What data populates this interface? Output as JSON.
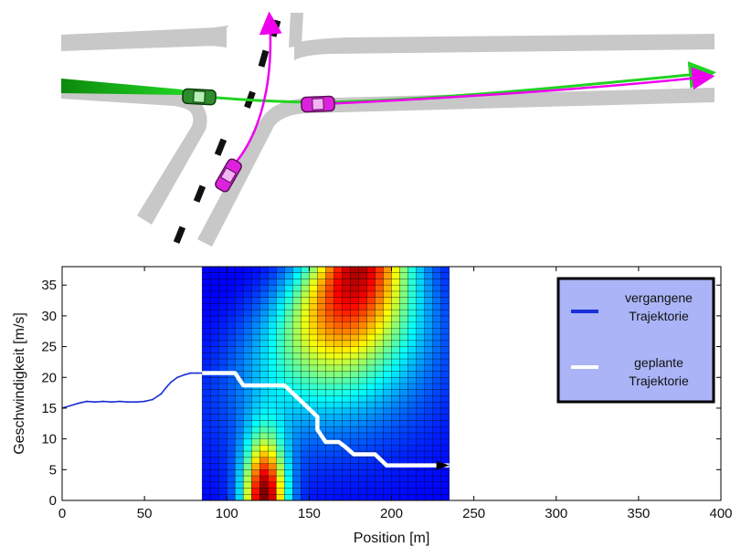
{
  "chart_data": {
    "type": "heatmap",
    "xlabel": "Position [m]",
    "ylabel": "Geschwindigkeit [m/s]",
    "xlim": [
      0,
      400
    ],
    "ylim": [
      0,
      38
    ],
    "xticks": [
      "0",
      "50",
      "100",
      "150",
      "200",
      "250",
      "300",
      "350",
      "400"
    ],
    "yticks": [
      "0",
      "5",
      "10",
      "15",
      "20",
      "25",
      "30",
      "35"
    ],
    "grid": true,
    "legend_position": "top-right",
    "colormap": "jet",
    "heatmap_extent": {
      "x": [
        85,
        235
      ],
      "y": [
        0,
        38
      ]
    },
    "heatmap_cells": {
      "nx": 30,
      "ny": 38
    },
    "hotspots": [
      {
        "x_center": 123,
        "y_center": 0,
        "x_spread": 9,
        "y_spread": 7,
        "intensity": 1.0
      },
      {
        "x_center": 180,
        "y_center": 38,
        "x_spread": 22,
        "y_spread": 14,
        "intensity": 0.95,
        "curved": true
      }
    ],
    "series": [
      {
        "name": "vergangene Trajektorie",
        "color": "#1a2fd6",
        "x": [
          0,
          5,
          10,
          15,
          20,
          25,
          30,
          35,
          40,
          45,
          50,
          55,
          60,
          63,
          66,
          70,
          74,
          78,
          82,
          85
        ],
        "y": [
          15,
          15.4,
          15.8,
          16.1,
          16.0,
          16.1,
          16.0,
          16.1,
          16.0,
          16.0,
          16.1,
          16.4,
          17.3,
          18.3,
          19.2,
          20.0,
          20.4,
          20.7,
          20.7,
          20.7
        ]
      },
      {
        "name": "geplante Trajektorie",
        "color": "#ffffff",
        "x": [
          85,
          105,
          110,
          135,
          155,
          155,
          160,
          168,
          172,
          177,
          190,
          197,
          230,
          235
        ],
        "y": [
          20.7,
          20.7,
          18.7,
          18.7,
          13.6,
          11.5,
          9.5,
          9.5,
          8.7,
          7.5,
          7.5,
          5.7,
          5.7,
          5.7
        ]
      }
    ],
    "legend": [
      {
        "line1": "vergangene",
        "line2": "Trajektorie",
        "color": "#1a2fd6"
      },
      {
        "line1": "geplante",
        "line2": "Trajektorie",
        "color": "#ffffff"
      }
    ]
  },
  "scene": {
    "road_color": "#c8c8c8",
    "lane_mark_color": "#111111",
    "ego_path_color": "#00dd00",
    "other_path_color": "#ee00ee",
    "ego_car_color": "#2e8b2e",
    "other_car_color": "#dd22dd"
  }
}
